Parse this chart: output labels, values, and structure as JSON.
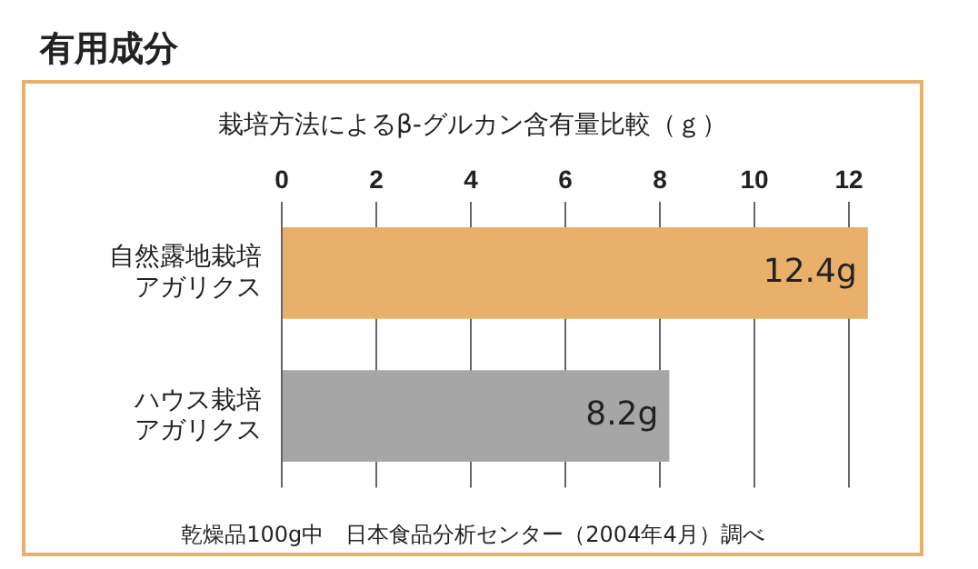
{
  "chart_data": {
    "type": "bar",
    "orientation": "horizontal",
    "title": "有用成分",
    "subtitle": "栽培方法によるβ-グルカン含有量比較（ｇ）",
    "categories": [
      "自然露地栽培アガリクス",
      "ハウス栽培アガリクス"
    ],
    "values": [
      12.4,
      8.2
    ],
    "colors": [
      "#e8b06a",
      "#a6a6a6"
    ],
    "value_labels": [
      "12.4g",
      "8.2g"
    ],
    "xlim": [
      0,
      12.5
    ],
    "xticks": [
      0,
      2,
      4,
      6,
      8,
      10,
      12
    ],
    "grid": "x",
    "legend": false,
    "annotations": [
      "乾燥品100g中　日本食品分析センター（2004年4月）調べ"
    ]
  }
}
